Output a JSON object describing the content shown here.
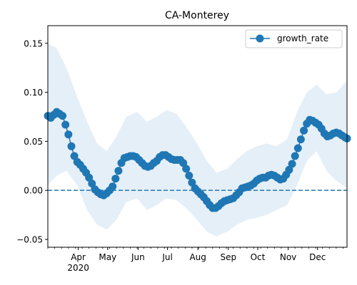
{
  "chart_data": {
    "type": "line",
    "title": "CA-Monterey",
    "xlabel": "",
    "ylabel": "",
    "x_start": "2020-03-01",
    "x_end": "2020-12-31",
    "ylim": [
      -0.058,
      0.168
    ],
    "y_ticks": [
      {
        "value": 0.15,
        "label": "0.15"
      },
      {
        "value": 0.1,
        "label": "0.10"
      },
      {
        "value": 0.05,
        "label": "0.05"
      },
      {
        "value": 0.0,
        "label": "0.00"
      },
      {
        "value": -0.05,
        "label": "−0.05"
      }
    ],
    "x_ticks": [
      {
        "date": "2020-04-01",
        "label": "Apr",
        "sublabel": "2020"
      },
      {
        "date": "2020-05-01",
        "label": "May"
      },
      {
        "date": "2020-06-01",
        "label": "Jun"
      },
      {
        "date": "2020-07-01",
        "label": "Jul"
      },
      {
        "date": "2020-08-01",
        "label": "Aug"
      },
      {
        "date": "2020-09-01",
        "label": "Sep"
      },
      {
        "date": "2020-10-01",
        "label": "Oct"
      },
      {
        "date": "2020-11-01",
        "label": "Nov"
      },
      {
        "date": "2020-12-01",
        "label": "Dec"
      }
    ],
    "legend": {
      "placement": "top-right",
      "entries": [
        "growth_rate"
      ]
    },
    "reference_line": {
      "y": 0,
      "style": "dashed"
    },
    "grid": false,
    "colors": {
      "line": "#1f77b4",
      "band": "#dce9f5"
    },
    "series": [
      {
        "name": "growth_rate",
        "points": [
          [
            "2020-03-01",
            0.076
          ],
          [
            "2020-03-04",
            0.074
          ],
          [
            "2020-03-07",
            0.077
          ],
          [
            "2020-03-10",
            0.08
          ],
          [
            "2020-03-13",
            0.078
          ],
          [
            "2020-03-16",
            0.076
          ],
          [
            "2020-03-19",
            0.067
          ],
          [
            "2020-03-22",
            0.057
          ],
          [
            "2020-03-25",
            0.045
          ],
          [
            "2020-03-28",
            0.035
          ],
          [
            "2020-03-31",
            0.029
          ],
          [
            "2020-04-03",
            0.026
          ],
          [
            "2020-04-06",
            0.022
          ],
          [
            "2020-04-09",
            0.018
          ],
          [
            "2020-04-12",
            0.013
          ],
          [
            "2020-04-15",
            0.007
          ],
          [
            "2020-04-18",
            0.001
          ],
          [
            "2020-04-21",
            -0.002
          ],
          [
            "2020-04-24",
            -0.004
          ],
          [
            "2020-04-27",
            -0.005
          ],
          [
            "2020-04-30",
            -0.003
          ],
          [
            "2020-05-03",
            0.0
          ],
          [
            "2020-05-06",
            0.004
          ],
          [
            "2020-05-09",
            0.012
          ],
          [
            "2020-05-12",
            0.02
          ],
          [
            "2020-05-15",
            0.028
          ],
          [
            "2020-05-18",
            0.033
          ],
          [
            "2020-05-21",
            0.034
          ],
          [
            "2020-05-24",
            0.035
          ],
          [
            "2020-05-27",
            0.035
          ],
          [
            "2020-05-30",
            0.034
          ],
          [
            "2020-06-02",
            0.031
          ],
          [
            "2020-06-05",
            0.028
          ],
          [
            "2020-06-08",
            0.025
          ],
          [
            "2020-06-11",
            0.024
          ],
          [
            "2020-06-14",
            0.025
          ],
          [
            "2020-06-17",
            0.028
          ],
          [
            "2020-06-20",
            0.03
          ],
          [
            "2020-06-23",
            0.034
          ],
          [
            "2020-06-26",
            0.036
          ],
          [
            "2020-06-29",
            0.036
          ],
          [
            "2020-07-02",
            0.034
          ],
          [
            "2020-07-05",
            0.032
          ],
          [
            "2020-07-08",
            0.031
          ],
          [
            "2020-07-11",
            0.031
          ],
          [
            "2020-07-14",
            0.031
          ],
          [
            "2020-07-17",
            0.028
          ],
          [
            "2020-07-20",
            0.022
          ],
          [
            "2020-07-23",
            0.015
          ],
          [
            "2020-07-26",
            0.008
          ],
          [
            "2020-07-29",
            0.002
          ],
          [
            "2020-08-01",
            -0.001
          ],
          [
            "2020-08-04",
            -0.004
          ],
          [
            "2020-08-07",
            -0.007
          ],
          [
            "2020-08-10",
            -0.011
          ],
          [
            "2020-08-13",
            -0.015
          ],
          [
            "2020-08-16",
            -0.018
          ],
          [
            "2020-08-19",
            -0.018
          ],
          [
            "2020-08-22",
            -0.016
          ],
          [
            "2020-08-25",
            -0.013
          ],
          [
            "2020-08-28",
            -0.011
          ],
          [
            "2020-08-31",
            -0.01
          ],
          [
            "2020-09-03",
            -0.009
          ],
          [
            "2020-09-06",
            -0.008
          ],
          [
            "2020-09-09",
            -0.005
          ],
          [
            "2020-09-12",
            -0.002
          ],
          [
            "2020-09-15",
            0.002
          ],
          [
            "2020-09-18",
            0.003
          ],
          [
            "2020-09-21",
            0.004
          ],
          [
            "2020-09-24",
            0.005
          ],
          [
            "2020-09-27",
            0.007
          ],
          [
            "2020-09-30",
            0.01
          ],
          [
            "2020-10-03",
            0.012
          ],
          [
            "2020-10-06",
            0.013
          ],
          [
            "2020-10-09",
            0.013
          ],
          [
            "2020-10-12",
            0.015
          ],
          [
            "2020-10-15",
            0.016
          ],
          [
            "2020-10-18",
            0.015
          ],
          [
            "2020-10-21",
            0.013
          ],
          [
            "2020-10-24",
            0.011
          ],
          [
            "2020-10-27",
            0.012
          ],
          [
            "2020-10-30",
            0.016
          ],
          [
            "2020-11-02",
            0.021
          ],
          [
            "2020-11-05",
            0.027
          ],
          [
            "2020-11-08",
            0.035
          ],
          [
            "2020-11-11",
            0.043
          ],
          [
            "2020-11-14",
            0.052
          ],
          [
            "2020-11-17",
            0.061
          ],
          [
            "2020-11-20",
            0.068
          ],
          [
            "2020-11-23",
            0.072
          ],
          [
            "2020-11-26",
            0.071
          ],
          [
            "2020-11-29",
            0.069
          ],
          [
            "2020-12-02",
            0.067
          ],
          [
            "2020-12-05",
            0.063
          ],
          [
            "2020-12-08",
            0.058
          ],
          [
            "2020-12-11",
            0.055
          ],
          [
            "2020-12-14",
            0.056
          ],
          [
            "2020-12-17",
            0.058
          ],
          [
            "2020-12-20",
            0.059
          ],
          [
            "2020-12-23",
            0.058
          ],
          [
            "2020-12-26",
            0.056
          ],
          [
            "2020-12-29",
            0.054
          ],
          [
            "2020-12-31",
            0.053
          ]
        ],
        "band_upper": [
          [
            "2020-03-01",
            0.15
          ],
          [
            "2020-03-10",
            0.145
          ],
          [
            "2020-03-20",
            0.125
          ],
          [
            "2020-03-31",
            0.095
          ],
          [
            "2020-04-10",
            0.07
          ],
          [
            "2020-04-20",
            0.048
          ],
          [
            "2020-04-30",
            0.04
          ],
          [
            "2020-05-10",
            0.055
          ],
          [
            "2020-05-20",
            0.075
          ],
          [
            "2020-05-31",
            0.08
          ],
          [
            "2020-06-10",
            0.07
          ],
          [
            "2020-06-20",
            0.075
          ],
          [
            "2020-06-30",
            0.082
          ],
          [
            "2020-07-10",
            0.078
          ],
          [
            "2020-07-20",
            0.065
          ],
          [
            "2020-07-31",
            0.048
          ],
          [
            "2020-08-10",
            0.03
          ],
          [
            "2020-08-20",
            0.018
          ],
          [
            "2020-08-31",
            0.022
          ],
          [
            "2020-09-10",
            0.032
          ],
          [
            "2020-09-20",
            0.04
          ],
          [
            "2020-09-30",
            0.045
          ],
          [
            "2020-10-10",
            0.048
          ],
          [
            "2020-10-20",
            0.045
          ],
          [
            "2020-10-31",
            0.052
          ],
          [
            "2020-11-10",
            0.08
          ],
          [
            "2020-11-20",
            0.1
          ],
          [
            "2020-11-30",
            0.108
          ],
          [
            "2020-12-10",
            0.098
          ],
          [
            "2020-12-20",
            0.1
          ],
          [
            "2020-12-31",
            0.112
          ]
        ],
        "band_lower": [
          [
            "2020-03-01",
            0.005
          ],
          [
            "2020-03-10",
            0.015
          ],
          [
            "2020-03-20",
            0.02
          ],
          [
            "2020-03-31",
            0.005
          ],
          [
            "2020-04-10",
            -0.02
          ],
          [
            "2020-04-20",
            -0.035
          ],
          [
            "2020-04-30",
            -0.04
          ],
          [
            "2020-05-10",
            -0.03
          ],
          [
            "2020-05-20",
            -0.012
          ],
          [
            "2020-05-31",
            -0.008
          ],
          [
            "2020-06-10",
            -0.02
          ],
          [
            "2020-06-20",
            -0.015
          ],
          [
            "2020-06-30",
            -0.008
          ],
          [
            "2020-07-10",
            -0.01
          ],
          [
            "2020-07-20",
            -0.018
          ],
          [
            "2020-07-31",
            -0.03
          ],
          [
            "2020-08-10",
            -0.042
          ],
          [
            "2020-08-20",
            -0.047
          ],
          [
            "2020-08-31",
            -0.042
          ],
          [
            "2020-09-10",
            -0.035
          ],
          [
            "2020-09-20",
            -0.03
          ],
          [
            "2020-09-30",
            -0.028
          ],
          [
            "2020-10-10",
            -0.025
          ],
          [
            "2020-10-20",
            -0.02
          ],
          [
            "2020-10-31",
            -0.015
          ],
          [
            "2020-11-10",
            0.005
          ],
          [
            "2020-11-20",
            0.03
          ],
          [
            "2020-11-30",
            0.04
          ],
          [
            "2020-12-10",
            0.02
          ],
          [
            "2020-12-20",
            0.01
          ],
          [
            "2020-12-31",
            0.002
          ]
        ]
      }
    ]
  }
}
